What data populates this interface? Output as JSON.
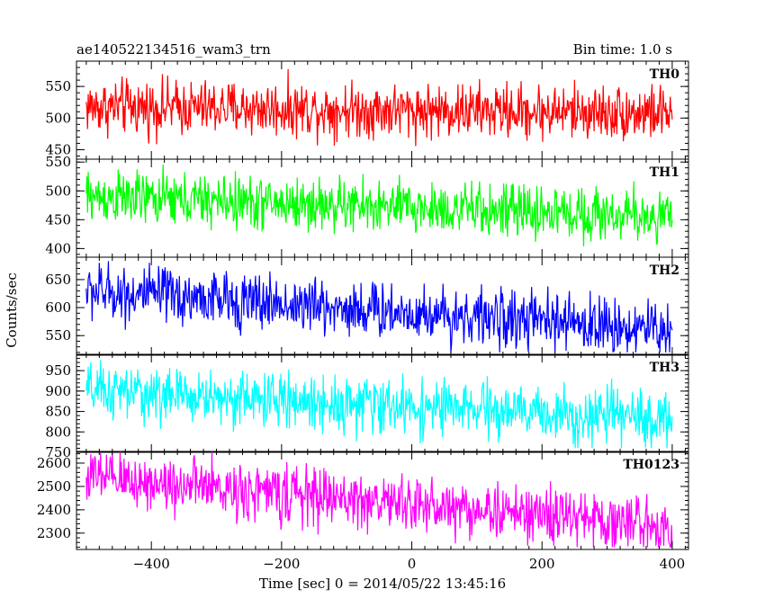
{
  "header": {
    "left_title": "ae140522134516_wam3_trn",
    "right_title": "Bin time: 1.0 s"
  },
  "xlabel": "Time [sec] 0 = 2014/05/22 13:45:16",
  "ylabel": "Counts/sec",
  "chart_data": {
    "type": "line",
    "xlim": [
      -515,
      425
    ],
    "x_ticks": [
      -400,
      -200,
      0,
      200,
      400
    ],
    "x_tick_labels": [
      "−400",
      "−200",
      "0",
      "200",
      "400"
    ],
    "x_range_data": [
      -500,
      400
    ],
    "bin_time_s": 1.0,
    "grid": false,
    "panels": [
      {
        "label": "TH0",
        "color": "#ff0000",
        "ylim": [
          435,
          590
        ],
        "ticks": [
          450,
          500,
          550
        ],
        "tick_labels": [
          "450",
          "500",
          "550"
        ],
        "trend_x": [
          -500,
          400
        ],
        "trend_y": [
          518,
          508
        ],
        "range_min": 445,
        "range_max": 590
      },
      {
        "label": "TH1",
        "color": "#00ff00",
        "ylim": [
          385,
          555
        ],
        "ticks": [
          400,
          450,
          500,
          550
        ],
        "tick_labels": [
          "400",
          "450",
          "500",
          "550"
        ],
        "trend_x": [
          -500,
          400
        ],
        "trend_y": [
          490,
          455
        ],
        "range_min": 395,
        "range_max": 550
      },
      {
        "label": "TH2",
        "color": "#0000ff",
        "ylim": [
          515,
          690
        ],
        "ticks": [
          550,
          600,
          650
        ],
        "tick_labels": [
          "550",
          "600",
          "650"
        ],
        "trend_x": [
          -500,
          400
        ],
        "trend_y": [
          630,
          560
        ],
        "range_min": 520,
        "range_max": 690
      },
      {
        "label": "TH3",
        "color": "#00ffff",
        "ylim": [
          750,
          990
        ],
        "ticks": [
          750,
          800,
          850,
          900,
          950
        ],
        "tick_labels": [
          "750",
          "800",
          "850",
          "900",
          "950"
        ],
        "trend_x": [
          -500,
          400
        ],
        "trend_y": [
          900,
          830
        ],
        "range_min": 760,
        "range_max": 985
      },
      {
        "label": "TH0123",
        "color": "#ff00ff",
        "ylim": [
          2230,
          2650
        ],
        "ticks": [
          2300,
          2400,
          2500,
          2600
        ],
        "tick_labels": [
          "2300",
          "2400",
          "2500",
          "2600"
        ],
        "trend_x": [
          -500,
          400
        ],
        "trend_y": [
          2540,
          2330
        ],
        "range_min": 2240,
        "range_max": 2650
      }
    ]
  }
}
